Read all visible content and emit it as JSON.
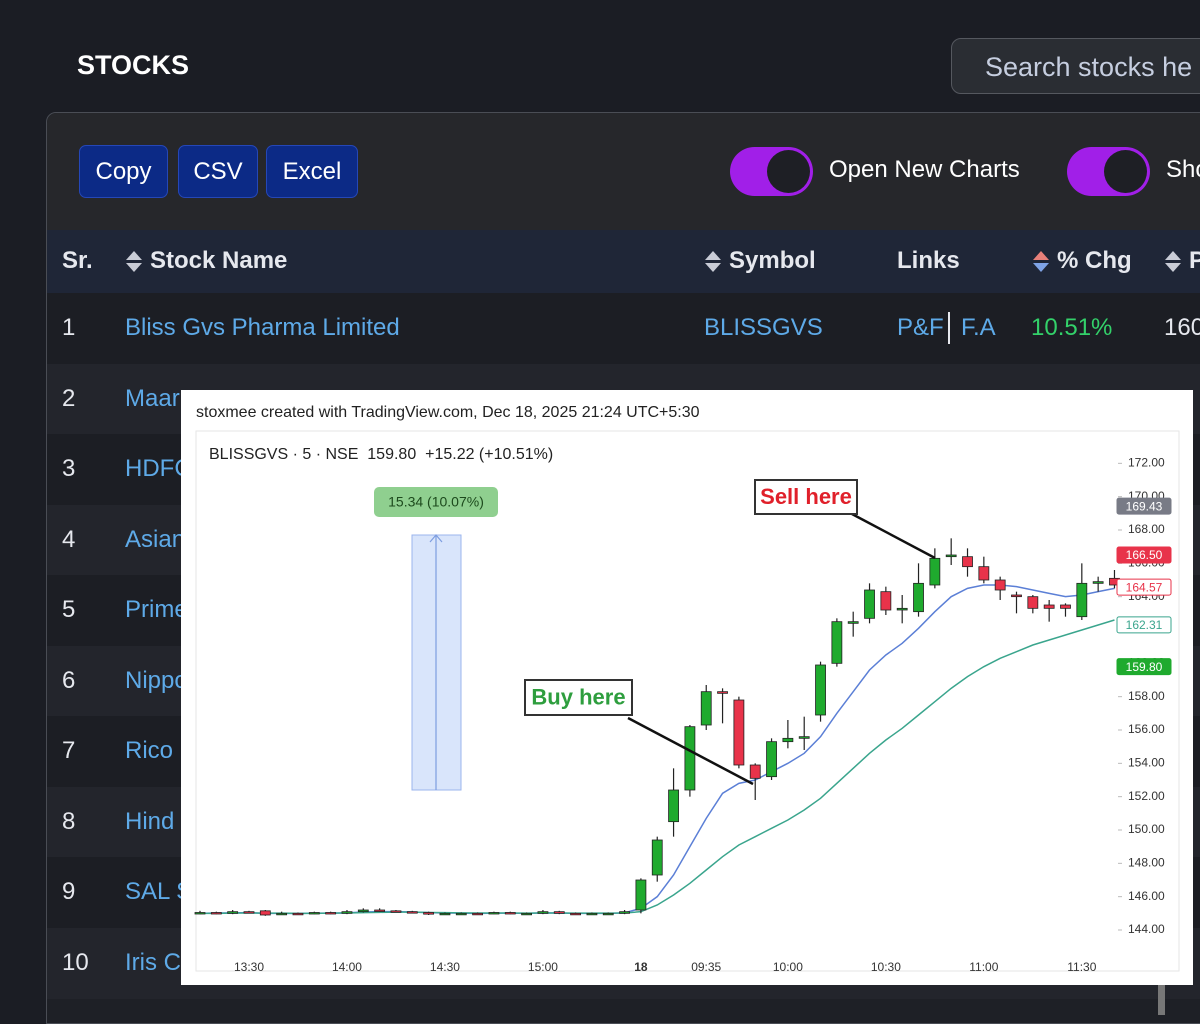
{
  "header": {
    "title": "STOCKS",
    "search": "Search stocks he"
  },
  "toolbar": {
    "buttons": [
      "Copy",
      "CSV",
      "Excel"
    ],
    "toggles": [
      "Open New Charts",
      "Sho"
    ]
  },
  "table": {
    "columns": [
      "Sr.",
      "Stock Name",
      "Symbol",
      "Links",
      "% Chg",
      "P"
    ],
    "rows": [
      {
        "sr": "1",
        "name": "Bliss Gvs Pharma Limited",
        "symbol": "BLISSGVS",
        "links": [
          "P&F",
          "F.A"
        ],
        "chg": "10.51%",
        "price": "160"
      },
      {
        "sr": "2",
        "name": "Maar"
      },
      {
        "sr": "3",
        "name": "HDFC"
      },
      {
        "sr": "4",
        "name": "Asian"
      },
      {
        "sr": "5",
        "name": "Prime"
      },
      {
        "sr": "6",
        "name": "Nippo"
      },
      {
        "sr": "7",
        "name": "Rico"
      },
      {
        "sr": "8",
        "name": "Hind"
      },
      {
        "sr": "9",
        "name": "SAL S"
      },
      {
        "sr": "10",
        "name": "Iris C"
      }
    ]
  },
  "chart_data": {
    "type": "candlestick",
    "attribution": "stoxmee created with TradingView.com, Dec 18, 2025 21:24 UTC+5:30",
    "legend_text": "BLISSGVS · 5 · NSE  159.80  +15.22 (+10.51%)",
    "categories": [
      null,
      null,
      null,
      "13:30",
      null,
      null,
      null,
      null,
      null,
      "14:00",
      null,
      null,
      null,
      null,
      null,
      "14:30",
      null,
      null,
      null,
      null,
      null,
      "15:00",
      null,
      null,
      null,
      null,
      null,
      "18",
      null,
      null,
      null,
      "09:35",
      null,
      null,
      null,
      null,
      "10:00",
      null,
      null,
      null,
      null,
      null,
      "10:30",
      null,
      null,
      null,
      null,
      null,
      "11:00",
      null,
      null,
      null,
      null,
      null,
      "11:30",
      null,
      null
    ],
    "open": [
      145.0,
      145.05,
      145.0,
      145.1,
      145.15,
      145.0,
      145.0,
      145.0,
      145.05,
      145.0,
      145.1,
      145.2,
      145.15,
      145.1,
      145.05,
      145.0,
      145.0,
      145.0,
      145.0,
      145.05,
      145.0,
      145.0,
      145.1,
      145.0,
      144.95,
      145.0,
      145.0,
      145.2,
      147.3,
      150.5,
      152.4,
      156.3,
      158.3,
      157.8,
      153.9,
      153.2,
      155.3,
      155.5,
      156.9,
      160.0,
      162.4,
      162.7,
      164.3,
      163.2,
      163.1,
      164.7,
      166.4,
      166.4,
      165.8,
      165.0,
      164.1,
      164.0,
      163.5,
      163.5,
      162.8,
      164.8,
      165.1
    ],
    "high": [
      145.15,
      145.1,
      145.2,
      145.15,
      145.2,
      145.1,
      145.05,
      145.1,
      145.1,
      145.2,
      145.3,
      145.3,
      145.2,
      145.15,
      145.1,
      145.05,
      145.05,
      145.05,
      145.1,
      145.1,
      145.05,
      145.2,
      145.15,
      145.05,
      145.05,
      145.05,
      145.2,
      147.1,
      149.6,
      153.7,
      156.3,
      158.7,
      158.5,
      158.0,
      154.0,
      155.5,
      156.6,
      156.8,
      160.1,
      162.7,
      163.1,
      164.8,
      164.6,
      164.1,
      166.0,
      166.9,
      167.5,
      166.9,
      166.4,
      165.2,
      164.3,
      164.1,
      163.8,
      163.6,
      166.0,
      165.2,
      165.6
    ],
    "low": [
      144.95,
      144.95,
      144.95,
      145.0,
      144.85,
      144.95,
      144.9,
      144.95,
      144.95,
      144.95,
      145.05,
      145.1,
      145.05,
      145.0,
      144.9,
      144.95,
      144.95,
      144.9,
      144.95,
      144.95,
      144.95,
      144.95,
      144.95,
      144.9,
      144.9,
      144.95,
      144.95,
      145.0,
      146.9,
      149.6,
      152.0,
      156.0,
      156.4,
      153.7,
      151.8,
      153.0,
      154.9,
      154.8,
      156.5,
      159.8,
      161.6,
      162.4,
      162.9,
      162.4,
      162.8,
      164.5,
      165.9,
      165.2,
      164.8,
      163.8,
      163.0,
      163.0,
      162.5,
      162.8,
      162.6,
      164.3,
      164.5
    ],
    "close": [
      145.05,
      145.0,
      145.1,
      145.05,
      144.9,
      145.0,
      144.95,
      145.05,
      145.0,
      145.1,
      145.2,
      145.15,
      145.1,
      145.05,
      144.95,
      145.0,
      145.0,
      144.95,
      145.05,
      145.0,
      145.0,
      145.1,
      145.0,
      144.95,
      145.0,
      145.0,
      145.1,
      147.0,
      149.4,
      152.4,
      156.2,
      158.3,
      158.2,
      153.9,
      153.1,
      155.3,
      155.5,
      155.6,
      159.9,
      162.5,
      162.5,
      164.4,
      163.2,
      163.3,
      164.8,
      166.3,
      166.5,
      165.8,
      165.0,
      164.4,
      164.0,
      163.3,
      163.3,
      163.3,
      164.8,
      164.9,
      164.7
    ],
    "series": [
      {
        "color": "#5b7fd6",
        "values": [
          145.0,
          145.02,
          145.03,
          145.04,
          145.0,
          145.0,
          144.99,
          145.01,
          145.01,
          145.03,
          145.08,
          145.1,
          145.1,
          145.08,
          145.04,
          145.02,
          145.01,
          144.99,
          145.01,
          145.01,
          145.0,
          145.03,
          145.02,
          145.0,
          145.0,
          145.0,
          145.03,
          145.3,
          146.0,
          147.3,
          149.0,
          150.7,
          152.2,
          152.8,
          153.0,
          153.5,
          154.0,
          154.6,
          155.6,
          157.0,
          158.3,
          159.6,
          160.5,
          161.2,
          162.1,
          163.1,
          164.0,
          164.5,
          164.7,
          164.7,
          164.6,
          164.4,
          164.2,
          164.0,
          164.1,
          164.3,
          164.5
        ]
      },
      {
        "color": "#3aa58d",
        "values": [
          145.0,
          145.0,
          145.01,
          145.02,
          145.01,
          145.01,
          145.0,
          145.0,
          145.01,
          145.02,
          145.04,
          145.06,
          145.07,
          145.07,
          145.05,
          145.04,
          145.03,
          145.02,
          145.02,
          145.02,
          145.01,
          145.02,
          145.02,
          145.01,
          145.01,
          145.01,
          145.02,
          145.1,
          145.5,
          146.1,
          146.8,
          147.6,
          148.4,
          149.1,
          149.6,
          150.1,
          150.6,
          151.2,
          151.9,
          152.8,
          153.7,
          154.6,
          155.4,
          156.1,
          156.9,
          157.7,
          158.5,
          159.2,
          159.8,
          160.3,
          160.7,
          161.1,
          161.4,
          161.7,
          162.0,
          162.3,
          162.6
        ]
      }
    ],
    "up_color": "#1faa2e",
    "down_color": "#e8334a",
    "grid": false,
    "ylim": [
      142.8,
      173.4
    ],
    "yticks": [
      {
        "value": 144,
        "label": "144.00"
      },
      {
        "value": 146,
        "label": "146.00"
      },
      {
        "value": 148,
        "label": "148.00"
      },
      {
        "value": 150,
        "label": "150.00"
      },
      {
        "value": 152,
        "label": "152.00"
      },
      {
        "value": 154,
        "label": "154.00"
      },
      {
        "value": 156,
        "label": "156.00"
      },
      {
        "value": 158,
        "label": "158.00"
      },
      {
        "value": 160,
        "label": "160.00"
      },
      {
        "value": 162,
        "label": "162.00"
      },
      {
        "value": 164,
        "label": "164.00"
      },
      {
        "value": 166,
        "label": "166.00"
      },
      {
        "value": 168,
        "label": "168.00"
      },
      {
        "value": 170,
        "label": "170.00"
      },
      {
        "value": 172,
        "label": "172.00"
      }
    ],
    "price_tags": [
      {
        "value": 169.43,
        "label": "169.43",
        "color": "#787b86",
        "filled": true
      },
      {
        "value": 166.5,
        "label": "166.50",
        "color": "#e8334a",
        "filled": true
      },
      {
        "value": 164.57,
        "label": "164.57",
        "color": "#e8334a",
        "filled": false
      },
      {
        "value": 162.31,
        "label": "162.31",
        "color": "#3aa58d",
        "filled": false
      },
      {
        "value": 159.8,
        "label": "159.80",
        "color": "#1faa2e",
        "filled": true
      }
    ],
    "annotations": [
      {
        "text": "Sell here",
        "color": "#e0202a"
      },
      {
        "text": "Buy here",
        "color": "#2e9e3e"
      }
    ],
    "measure": {
      "label": "15.34 (10.07%)",
      "from": 152.4,
      "to": 167.7
    }
  }
}
